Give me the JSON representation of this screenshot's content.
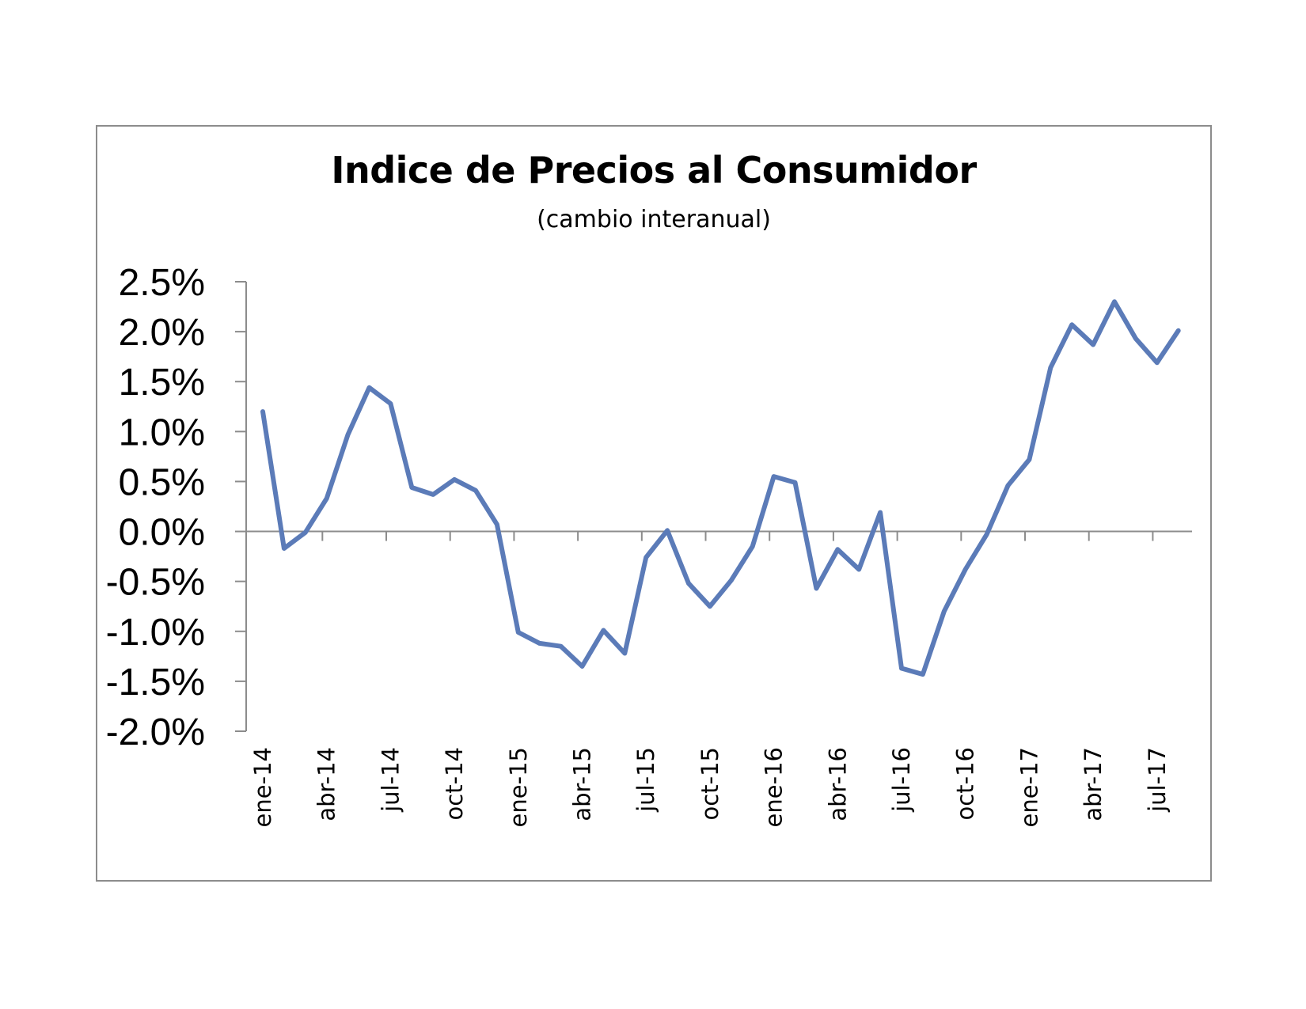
{
  "chart_data": {
    "type": "line",
    "title": "Indice de Precios al Consumidor",
    "subtitle": "(cambio interanual)",
    "xlabel": "",
    "ylabel": "",
    "ylim": [
      -2.0,
      2.5
    ],
    "y_ticks": [
      "2.5%",
      "2.0%",
      "1.5%",
      "1.0%",
      "0.5%",
      "0.0%",
      "-0.5%",
      "-1.0%",
      "-1.5%",
      "-2.0%"
    ],
    "y_tick_values": [
      2.5,
      2.0,
      1.5,
      1.0,
      0.5,
      0.0,
      -0.5,
      -1.0,
      -1.5,
      -2.0
    ],
    "x_tick_labels": [
      "ene-14",
      "abr-14",
      "jul-14",
      "oct-14",
      "ene-15",
      "abr-15",
      "jul-15",
      "oct-15",
      "ene-16",
      "abr-16",
      "jul-16",
      "oct-16",
      "ene-17",
      "abr-17",
      "jul-17"
    ],
    "x_tick_every": 3,
    "categories": [
      "ene-14",
      "feb-14",
      "mar-14",
      "abr-14",
      "may-14",
      "jun-14",
      "jul-14",
      "ago-14",
      "sep-14",
      "oct-14",
      "nov-14",
      "dic-14",
      "ene-15",
      "feb-15",
      "mar-15",
      "abr-15",
      "may-15",
      "jun-15",
      "jul-15",
      "ago-15",
      "sep-15",
      "oct-15",
      "nov-15",
      "dic-15",
      "ene-16",
      "feb-16",
      "mar-16",
      "abr-16",
      "may-16",
      "jun-16",
      "jul-16",
      "ago-16",
      "sep-16",
      "oct-16",
      "nov-16",
      "dic-16",
      "ene-17",
      "feb-17",
      "mar-17",
      "abr-17",
      "may-17",
      "jun-17",
      "jul-17",
      "ago-17"
    ],
    "series": [
      {
        "values": [
          1.2,
          -0.17,
          -0.01,
          0.33,
          0.97,
          1.44,
          1.28,
          0.44,
          0.37,
          0.52,
          0.41,
          0.07,
          -1.01,
          -1.12,
          -1.15,
          -1.35,
          -0.99,
          -1.22,
          -0.26,
          0.01,
          -0.52,
          -0.75,
          -0.49,
          -0.15,
          0.55,
          0.49,
          -0.57,
          -0.18,
          -0.38,
          0.19,
          -1.37,
          -1.43,
          -0.8,
          -0.38,
          -0.03,
          0.46,
          0.72,
          1.64,
          2.07,
          1.87,
          2.3,
          1.93,
          1.69,
          2.01
        ],
        "color": "#5b7bb8"
      }
    ],
    "grid": false,
    "legend": "none"
  }
}
